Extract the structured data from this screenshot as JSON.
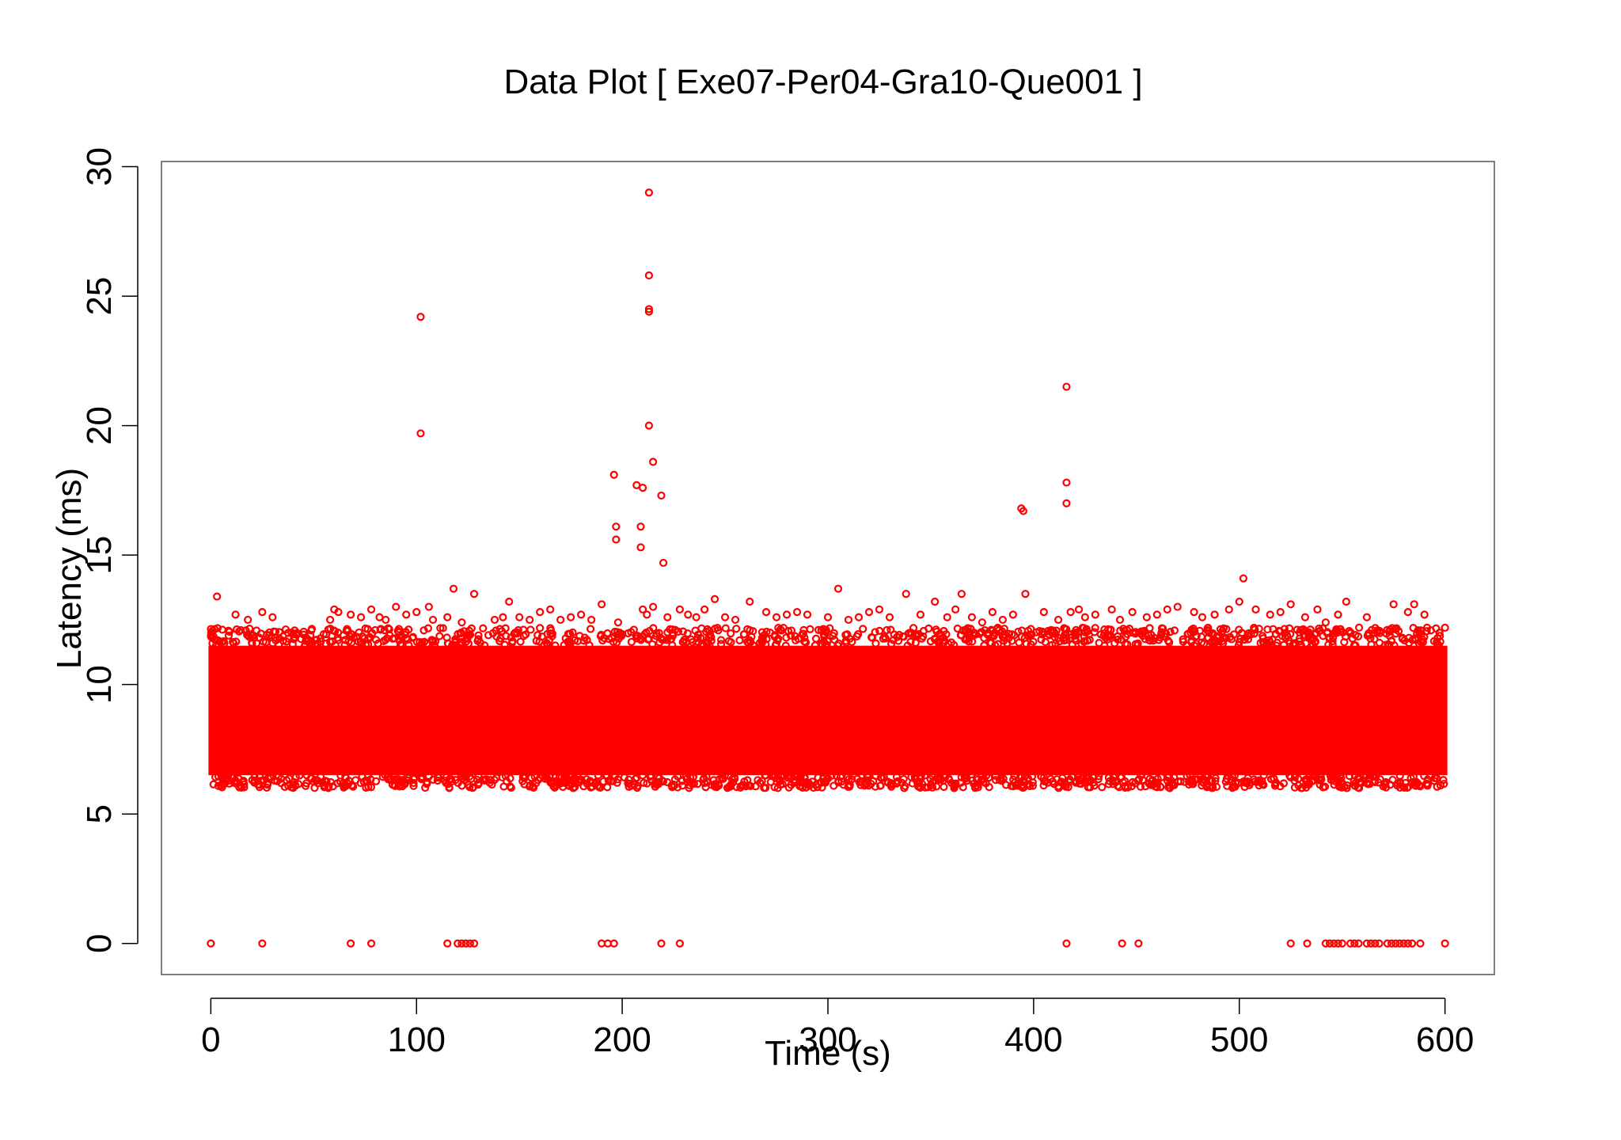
{
  "chart_data": {
    "type": "scatter",
    "title": "Data Plot [ Exe07-Per04-Gra10-Que001 ]",
    "xlabel": "Time (s)",
    "ylabel": "Latency (ms)",
    "xlim": [
      -24,
      624
    ],
    "ylim": [
      -1.2,
      30.2
    ],
    "xticks": [
      0,
      100,
      200,
      300,
      400,
      500,
      600
    ],
    "yticks": [
      0,
      5,
      10,
      15,
      20,
      25,
      30
    ],
    "grid": false,
    "legend": "none",
    "marker": "open-circle",
    "color": "#ff0000",
    "dense_band": {
      "x_range": [
        0,
        600
      ],
      "core_y_range": [
        6.5,
        11.5
      ],
      "upper_fringe_max": 12.2,
      "lower_fringe_min": 6.0
    },
    "series": [
      {
        "x": [
          3,
          12,
          18,
          25,
          30,
          58,
          60,
          62,
          68,
          73,
          78,
          82,
          85,
          90,
          95,
          100,
          106,
          108,
          115,
          118,
          122,
          128,
          138,
          142,
          145,
          150,
          155,
          160,
          165,
          170,
          175,
          180,
          185,
          190,
          198,
          210,
          212,
          215,
          222,
          228,
          232,
          236,
          240,
          245,
          250,
          255,
          262,
          270,
          275,
          280,
          285,
          290,
          300,
          305,
          310,
          315,
          320,
          325,
          330,
          338,
          345,
          352,
          358,
          362,
          365,
          370,
          375,
          380,
          385,
          390,
          396,
          405,
          412,
          418,
          422,
          425,
          430,
          438,
          442,
          448,
          455,
          460,
          465,
          470,
          478,
          482,
          488,
          495,
          500,
          502,
          508,
          515,
          520,
          525,
          532,
          538,
          542,
          548,
          552,
          562,
          575,
          582,
          585,
          590
        ],
        "y": [
          13.4,
          12.7,
          12.5,
          12.8,
          12.6,
          12.5,
          12.9,
          12.8,
          12.7,
          12.6,
          12.9,
          12.6,
          12.5,
          13.0,
          12.7,
          12.8,
          13.0,
          12.5,
          12.6,
          13.7,
          12.4,
          13.5,
          12.5,
          12.6,
          13.2,
          12.6,
          12.5,
          12.8,
          12.9,
          12.5,
          12.6,
          12.7,
          12.5,
          13.1,
          12.4,
          12.9,
          12.7,
          13.0,
          12.6,
          12.9,
          12.7,
          12.6,
          12.9,
          13.3,
          12.6,
          12.5,
          13.2,
          12.8,
          12.6,
          12.7,
          12.8,
          12.7,
          12.6,
          13.7,
          12.5,
          12.6,
          12.8,
          12.9,
          12.6,
          13.5,
          12.7,
          13.2,
          12.6,
          12.9,
          13.5,
          12.6,
          12.4,
          12.8,
          12.5,
          12.7,
          13.5,
          12.8,
          12.5,
          12.8,
          12.9,
          12.6,
          12.7,
          12.9,
          12.5,
          12.8,
          12.6,
          12.7,
          12.9,
          13.0,
          12.8,
          12.6,
          12.7,
          12.9,
          13.2,
          14.1,
          12.9,
          12.7,
          12.8,
          13.1,
          12.6,
          12.9,
          12.4,
          12.7,
          13.2,
          12.6,
          13.1,
          12.8,
          13.1,
          12.7
        ]
      },
      {
        "x": [
          102,
          102,
          196,
          197,
          197,
          207,
          209,
          209,
          210,
          213,
          213,
          213,
          213,
          213,
          215,
          219,
          220,
          394,
          395,
          416,
          416,
          416
        ],
        "y": [
          24.2,
          19.7,
          18.1,
          16.1,
          15.6,
          17.7,
          16.1,
          15.3,
          17.6,
          29.0,
          25.8,
          24.5,
          24.4,
          20.0,
          18.6,
          17.3,
          14.7,
          16.8,
          16.7,
          21.5,
          17.8,
          17.0
        ]
      },
      {
        "x": [
          0,
          25,
          68,
          78,
          115,
          120,
          122,
          124,
          126,
          128,
          190,
          193,
          196,
          219,
          228,
          416,
          443,
          451,
          525,
          533,
          542,
          544,
          546,
          548,
          550,
          554,
          556,
          558,
          562,
          564,
          566,
          568,
          572,
          574,
          576,
          578,
          580,
          582,
          584,
          588,
          600
        ],
        "y": [
          0,
          0,
          0,
          0,
          0,
          0,
          0,
          0,
          0,
          0,
          0,
          0,
          0,
          0,
          0,
          0,
          0,
          0,
          0,
          0,
          0,
          0,
          0,
          0,
          0,
          0,
          0,
          0,
          0,
          0,
          0,
          0,
          0,
          0,
          0,
          0,
          0,
          0,
          0,
          0,
          0
        ]
      }
    ]
  }
}
